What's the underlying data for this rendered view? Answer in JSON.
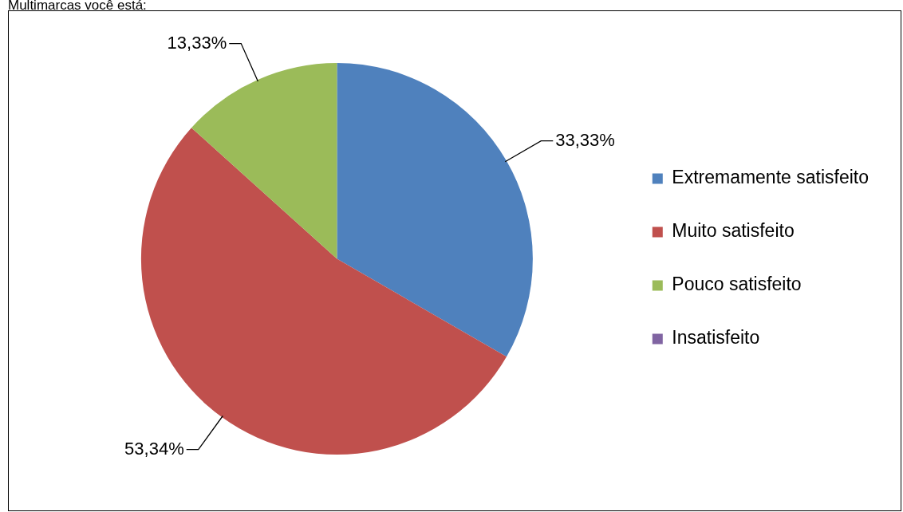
{
  "chart_data": {
    "type": "pie",
    "title": "Multimarcas você está:",
    "categories": [
      "Extremamente satisfeito",
      "Muito satisfeito",
      "Pouco satisfeito",
      "Insatisfeito"
    ],
    "values": [
      33.33,
      53.34,
      13.33,
      0
    ],
    "colors": [
      "#4f81bd",
      "#c0504d",
      "#9bbb59",
      "#8064a2"
    ],
    "value_labels": [
      "33,33%",
      "53,34%",
      "13,33%",
      null
    ],
    "legend": "right"
  }
}
